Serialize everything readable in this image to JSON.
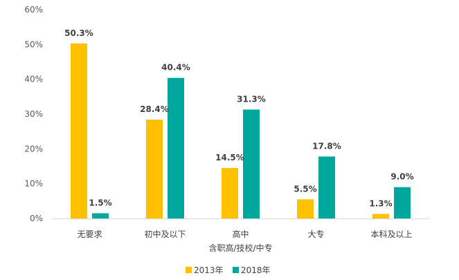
{
  "chart_data": {
    "type": "bar",
    "categories": [
      "无要求",
      "初中及以下",
      "高中\n含职高/技校/中专",
      "大专",
      "本科及以上"
    ],
    "series": [
      {
        "name": "2013年",
        "values": [
          50.3,
          28.4,
          14.5,
          5.5,
          1.3
        ],
        "labels": [
          "50.3%",
          "28.4%",
          "14.5%",
          "5.5%",
          "1.3%"
        ]
      },
      {
        "name": "2018年",
        "values": [
          1.5,
          40.4,
          31.3,
          17.8,
          9.0
        ],
        "labels": [
          "1.5%",
          "40.4%",
          "31.3%",
          "17.8%",
          "9.0%"
        ]
      }
    ],
    "ylim": [
      0,
      60
    ],
    "yticks": [
      "0%",
      "10%",
      "20%",
      "30%",
      "40%",
      "50%",
      "60%"
    ],
    "grid": false,
    "legend": "bottom",
    "colors": {
      "2013年": "#FFC000",
      "2018年": "#00A79D"
    },
    "xlabel": "",
    "ylabel": "",
    "title": ""
  }
}
